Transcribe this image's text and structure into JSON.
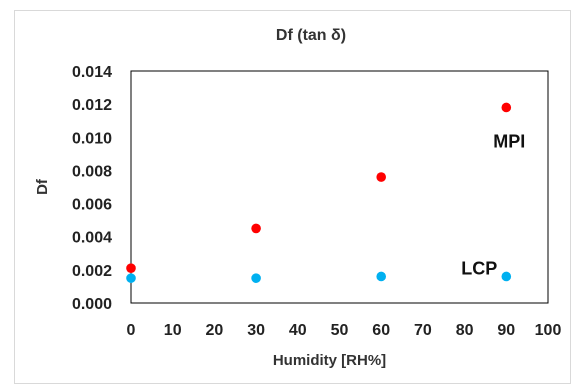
{
  "corner_text": "　　　",
  "chart_data": {
    "type": "scatter",
    "title": "Df (tan δ)",
    "xlabel": "Humidity [RH%]",
    "ylabel": "Df",
    "xlim": [
      0,
      100
    ],
    "ylim": [
      0,
      0.014
    ],
    "x_ticks": [
      0,
      10,
      20,
      30,
      40,
      50,
      60,
      70,
      80,
      90,
      100
    ],
    "y_ticks": [
      "0.000",
      "0.002",
      "0.004",
      "0.006",
      "0.008",
      "0.010",
      "0.012",
      "0.014"
    ],
    "grid": false,
    "legend": "none",
    "series": [
      {
        "name": "MPI",
        "color": "#ff0000",
        "points": [
          {
            "x": 0,
            "y": 0.0021
          },
          {
            "x": 30,
            "y": 0.0045
          },
          {
            "x": 60,
            "y": 0.0076
          },
          {
            "x": 90,
            "y": 0.0118
          }
        ]
      },
      {
        "name": "LCP",
        "color": "#00b0f0",
        "points": [
          {
            "x": 0,
            "y": 0.0015
          },
          {
            "x": 30,
            "y": 0.0015
          },
          {
            "x": 60,
            "y": 0.0016
          },
          {
            "x": 90,
            "y": 0.0016
          }
        ]
      }
    ]
  }
}
